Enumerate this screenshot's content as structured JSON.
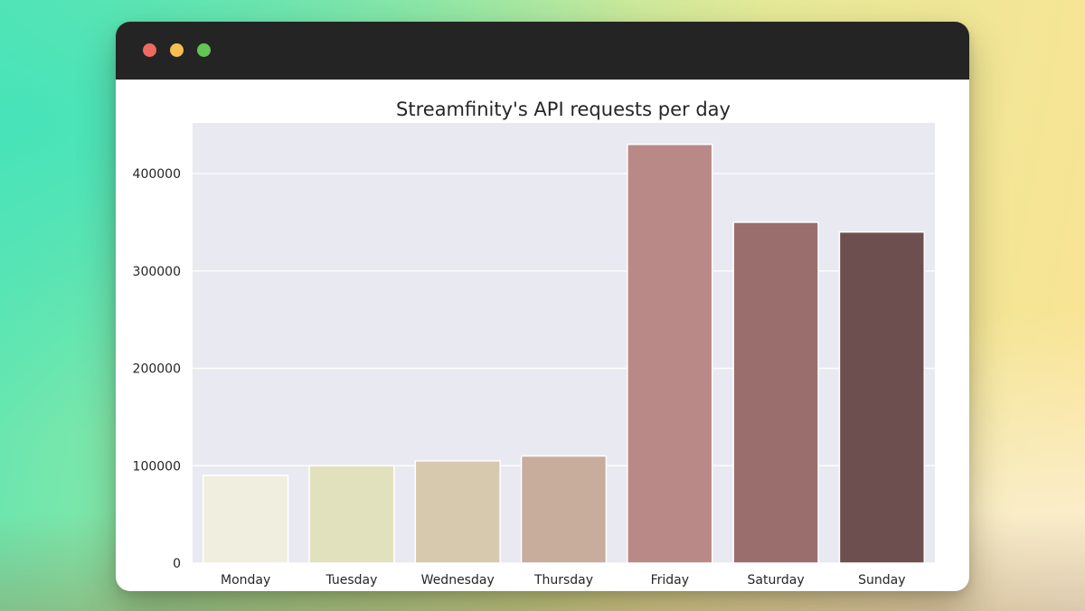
{
  "window": {
    "controls": [
      {
        "name": "close",
        "color": "#ee6a5f"
      },
      {
        "name": "minimize",
        "color": "#f5be4f"
      },
      {
        "name": "maximize",
        "color": "#62c554"
      }
    ]
  },
  "chart_data": {
    "type": "bar",
    "title": "Streamfinity's API requests per day",
    "xlabel": "",
    "ylabel": "",
    "categories": [
      "Monday",
      "Tuesday",
      "Wednesday",
      "Thursday",
      "Friday",
      "Saturday",
      "Sunday"
    ],
    "values": [
      90000,
      100000,
      105000,
      110000,
      430000,
      350000,
      340000
    ],
    "colors": [
      "#efeedf",
      "#e1e2bd",
      "#d7c9ae",
      "#c8ad9c",
      "#b98988",
      "#996e6d",
      "#6e4f4f"
    ],
    "ylim": [
      0,
      452000
    ],
    "yticks": [
      0,
      100000,
      200000,
      300000,
      400000
    ],
    "ytick_labels": [
      "0",
      "100000",
      "200000",
      "300000",
      "400000"
    ],
    "grid": true,
    "background": "#e9e9f1"
  }
}
